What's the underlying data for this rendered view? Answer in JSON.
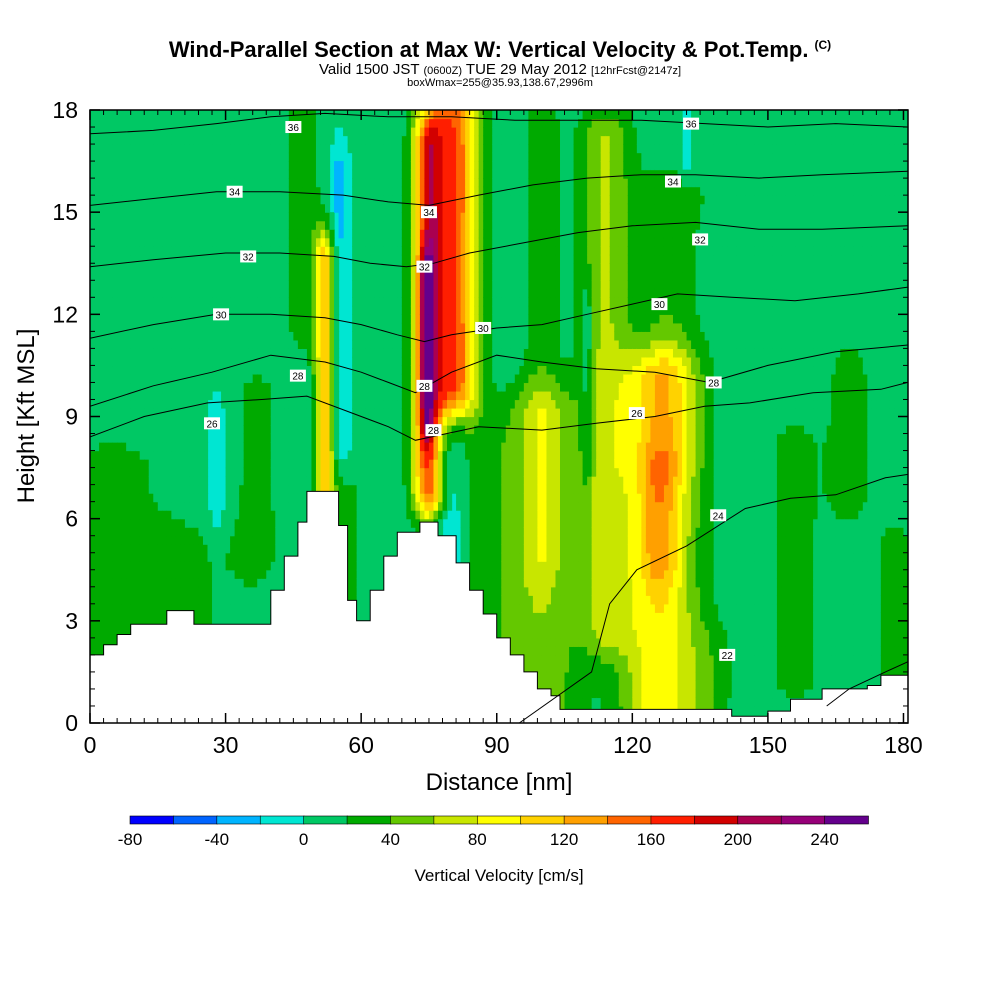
{
  "title": {
    "main": "Wind-Parallel Section at Max W: Vertical Velocity & Pot.Temp.",
    "copyright": "(C)",
    "valid_prefix": "Valid 1500 JST",
    "valid_utc": "(0600Z)",
    "valid_date": "TUE 29 May 2012",
    "forecast": "[12hrFcst@2147z]",
    "box_info": "boxWmax=255@35.93,138.67,2996m"
  },
  "chart_data": {
    "type": "heatmap",
    "xlabel": "Distance [nm]",
    "ylabel": "Height [Kft MSL]",
    "xlim": [
      0,
      181
    ],
    "ylim": [
      0,
      18
    ],
    "x_ticks": [
      0,
      30,
      60,
      90,
      120,
      150,
      180
    ],
    "y_ticks": [
      0,
      3,
      6,
      9,
      12,
      15,
      18
    ],
    "colorbar": {
      "label": "Vertical Velocity [cm/s]",
      "levels": [
        -80,
        -60,
        -40,
        -20,
        0,
        20,
        40,
        60,
        80,
        100,
        120,
        140,
        160,
        180,
        200,
        220,
        240
      ],
      "tick_labels": [
        "-80",
        "-40",
        "0",
        "40",
        "80",
        "120",
        "160",
        "200",
        "240"
      ],
      "colors": [
        "#0000ff",
        "#0064ff",
        "#00b4ff",
        "#00e6d2",
        "#00c864",
        "#00aa00",
        "#64c800",
        "#c8e600",
        "#ffff00",
        "#ffd200",
        "#ffa000",
        "#ff6400",
        "#ff1e00",
        "#d20000",
        "#aa0050",
        "#960078",
        "#64008c"
      ]
    },
    "background_color": "#00e6d2",
    "w_features": [
      {
        "x": 5,
        "x_sigma": 9,
        "z_from": 0,
        "z_to": 7.5,
        "w": 20
      },
      {
        "x": 20,
        "x_sigma": 9,
        "z_from": 0,
        "z_to": 5,
        "w": 18
      },
      {
        "x": 37,
        "x_sigma": 4,
        "z_from": 5,
        "z_to": 9.5,
        "w": 20
      },
      {
        "x": 28,
        "x_sigma": 1.2,
        "z_from": 6.5,
        "z_to": 8.5,
        "w": -30
      },
      {
        "x": 47,
        "x_sigma": 3,
        "z_from": 12,
        "z_to": 18,
        "w": 25
      },
      {
        "x": 52,
        "x_sigma": 1.6,
        "z_from": 7,
        "z_to": 13.5,
        "w": 110
      },
      {
        "x": 55,
        "x_sigma": 1.6,
        "z_from": 8.5,
        "z_to": 16,
        "w": -35
      },
      {
        "x": 57,
        "x_sigma": 2.5,
        "z_from": 3,
        "z_to": 6.5,
        "w": 20
      },
      {
        "x": 75,
        "x_sigma": 2.5,
        "z_from": 7,
        "z_to": 17,
        "w": 155
      },
      {
        "x": 74.5,
        "x_sigma": 1.2,
        "z_from": 9,
        "z_to": 13,
        "w": 80
      },
      {
        "x": 81,
        "x_sigma": 3.5,
        "z_from": 10,
        "z_to": 18,
        "w": 145
      },
      {
        "x": 79,
        "x_sigma": 3,
        "z_from": 3,
        "z_to": 8,
        "w": -40
      },
      {
        "x": 86,
        "x_sigma": 6,
        "z_from": 0,
        "z_to": 8,
        "w": 25
      },
      {
        "x": 100,
        "x_sigma": 6,
        "z_from": 0,
        "z_to": 9,
        "w": 50
      },
      {
        "x": 100,
        "x_sigma": 3,
        "z_from": 5,
        "z_to": 18,
        "w": 25
      },
      {
        "x": 110,
        "x_sigma": 0.9,
        "z_from": 8,
        "z_to": 12,
        "w": -30
      },
      {
        "x": 114,
        "x_sigma": 4,
        "z_from": 3,
        "z_to": 17,
        "w": 55
      },
      {
        "x": 126,
        "x_sigma": 6,
        "z_from": 0,
        "z_to": 10,
        "w": 90
      },
      {
        "x": 126,
        "x_sigma": 3,
        "z_from": 5,
        "z_to": 7,
        "w": 40
      },
      {
        "x": 128,
        "x_sigma": 5,
        "z_from": 8,
        "z_to": 15,
        "w": 30
      },
      {
        "x": 137,
        "x_sigma": 4,
        "z_from": 0,
        "z_to": 2,
        "w": 20
      },
      {
        "x": 156,
        "x_sigma": 5,
        "z_from": 1.5,
        "z_to": 8,
        "w": 20
      },
      {
        "x": 168,
        "x_sigma": 3,
        "z_from": 7,
        "z_to": 10,
        "w": 30
      },
      {
        "x": 178,
        "x_sigma": 3,
        "z_from": 0,
        "z_to": 5,
        "w": 25
      },
      {
        "x": 132,
        "x_sigma": 0.8,
        "z_from": 17,
        "z_to": 18,
        "w": -30
      },
      {
        "x": 142,
        "x_sigma": 15,
        "z_from": 16,
        "z_to": 18,
        "w": 8
      }
    ],
    "terrain": [
      [
        0,
        2
      ],
      [
        3,
        2.3
      ],
      [
        6,
        2.6
      ],
      [
        9,
        2.9
      ],
      [
        17,
        3.3
      ],
      [
        23,
        2.9
      ],
      [
        36,
        2.9
      ],
      [
        40,
        3.9
      ],
      [
        43,
        4.9
      ],
      [
        46,
        5.9
      ],
      [
        48,
        6.8
      ],
      [
        52,
        6.8
      ],
      [
        55,
        5.8
      ],
      [
        57,
        3.6
      ],
      [
        59,
        3.0
      ],
      [
        62,
        3.9
      ],
      [
        65,
        4.9
      ],
      [
        68,
        5.6
      ],
      [
        73,
        5.9
      ],
      [
        77,
        5.5
      ],
      [
        81,
        4.7
      ],
      [
        84,
        3.9
      ],
      [
        87,
        3.2
      ],
      [
        90,
        2.5
      ],
      [
        93,
        2.0
      ],
      [
        96,
        1.5
      ],
      [
        99,
        1.0
      ],
      [
        102,
        0.8
      ],
      [
        104,
        0.4
      ],
      [
        138,
        0.4
      ],
      [
        142,
        0.2
      ],
      [
        150,
        0.35
      ],
      [
        155,
        0.7
      ],
      [
        162,
        1.0
      ],
      [
        172,
        1.1
      ],
      [
        175,
        1.4
      ],
      [
        181,
        1.4
      ]
    ],
    "theta_contours": [
      {
        "level": 22,
        "label": "22",
        "points": [
          [
            163,
            0.5
          ],
          [
            168,
            1.0
          ],
          [
            176,
            1.5
          ],
          [
            181,
            1.8
          ]
        ],
        "label_at": [
          141,
          2.0
        ]
      },
      {
        "level": 24,
        "label": "24",
        "points": [
          [
            95,
            0
          ],
          [
            111,
            1.5
          ],
          [
            115,
            3.5
          ],
          [
            121,
            4.5
          ],
          [
            132,
            5.2
          ],
          [
            145,
            6.3
          ],
          [
            155,
            6.6
          ],
          [
            165,
            6.7
          ],
          [
            176,
            7.2
          ],
          [
            181,
            7.3
          ]
        ],
        "label_at": [
          139,
          6.1
        ]
      },
      {
        "level": 26,
        "label": "26",
        "points": [
          [
            0,
            8.4
          ],
          [
            12,
            9.0
          ],
          [
            26,
            9.4
          ],
          [
            38,
            9.5
          ],
          [
            48,
            9.6
          ],
          [
            60,
            9.0
          ],
          [
            66,
            8.7
          ],
          [
            72,
            8.3
          ],
          [
            86,
            8.7
          ],
          [
            100,
            8.6
          ],
          [
            112,
            8.8
          ],
          [
            125,
            9.0
          ],
          [
            136,
            9.3
          ],
          [
            146,
            9.4
          ],
          [
            160,
            9.7
          ],
          [
            175,
            9.8
          ],
          [
            181,
            10.0
          ]
        ],
        "label_at": [
          121,
          9.1
        ]
      },
      {
        "level": 28,
        "label": "28",
        "points": [
          [
            0,
            9.3
          ],
          [
            14,
            9.9
          ],
          [
            27,
            10.3
          ],
          [
            40,
            10.8
          ],
          [
            52,
            10.6
          ],
          [
            60,
            10.3
          ],
          [
            66,
            10.0
          ],
          [
            72,
            9.7
          ],
          [
            80,
            10.3
          ],
          [
            90,
            10.8
          ],
          [
            100,
            10.6
          ],
          [
            112,
            10.4
          ],
          [
            125,
            10.3
          ],
          [
            137,
            10.0
          ],
          [
            150,
            10.5
          ],
          [
            165,
            10.9
          ],
          [
            181,
            11.1
          ]
        ],
        "label_at": [
          46,
          10.2
        ]
      },
      {
        "level": 30,
        "label": "30",
        "points": [
          [
            0,
            11.3
          ],
          [
            14,
            11.7
          ],
          [
            28,
            12.0
          ],
          [
            40,
            12.0
          ],
          [
            52,
            11.9
          ],
          [
            60,
            11.7
          ],
          [
            68,
            11.4
          ],
          [
            74,
            11.2
          ],
          [
            80,
            11.4
          ],
          [
            90,
            11.6
          ],
          [
            100,
            11.7
          ],
          [
            110,
            12.0
          ],
          [
            120,
            12.3
          ],
          [
            130,
            12.6
          ],
          [
            142,
            12.5
          ],
          [
            156,
            12.4
          ],
          [
            170,
            12.6
          ],
          [
            181,
            12.8
          ]
        ],
        "label_at": [
          29,
          12.0
        ]
      },
      {
        "level": 32,
        "label": "32",
        "points": [
          [
            0,
            13.4
          ],
          [
            14,
            13.6
          ],
          [
            30,
            13.8
          ],
          [
            42,
            13.8
          ],
          [
            54,
            13.7
          ],
          [
            62,
            13.5
          ],
          [
            70,
            13.4
          ],
          [
            76,
            13.5
          ],
          [
            84,
            13.8
          ],
          [
            96,
            14.1
          ],
          [
            108,
            14.4
          ],
          [
            120,
            14.6
          ],
          [
            134,
            14.7
          ],
          [
            148,
            14.5
          ],
          [
            162,
            14.5
          ],
          [
            181,
            14.6
          ]
        ],
        "label_at": [
          35,
          13.7
        ]
      },
      {
        "level": 34,
        "label": "34",
        "points": [
          [
            0,
            15.2
          ],
          [
            14,
            15.4
          ],
          [
            28,
            15.6
          ],
          [
            42,
            15.6
          ],
          [
            56,
            15.5
          ],
          [
            66,
            15.3
          ],
          [
            75,
            15.2
          ],
          [
            86,
            15.5
          ],
          [
            98,
            15.8
          ],
          [
            110,
            16.0
          ],
          [
            122,
            16.1
          ],
          [
            134,
            16.1
          ],
          [
            148,
            16.0
          ],
          [
            162,
            16.1
          ],
          [
            181,
            16.2
          ]
        ],
        "label_at": [
          32,
          15.6
        ]
      },
      {
        "level": 36,
        "label": "36",
        "points": [
          [
            0,
            17.3
          ],
          [
            14,
            17.4
          ],
          [
            28,
            17.6
          ],
          [
            40,
            17.8
          ],
          [
            52,
            17.9
          ],
          [
            66,
            17.8
          ],
          [
            80,
            17.8
          ],
          [
            94,
            17.7
          ],
          [
            108,
            17.7
          ],
          [
            122,
            17.7
          ],
          [
            136,
            17.6
          ],
          [
            150,
            17.5
          ],
          [
            165,
            17.6
          ],
          [
            181,
            17.5
          ]
        ],
        "label_at": [
          45,
          17.5
        ]
      }
    ],
    "extra_labels": [
      {
        "label": "26",
        "at": [
          27,
          8.8
        ]
      },
      {
        "label": "28",
        "at": [
          74,
          9.9
        ]
      },
      {
        "label": "28",
        "at": [
          76,
          8.6
        ]
      },
      {
        "label": "30",
        "at": [
          87,
          11.6
        ]
      },
      {
        "label": "32",
        "at": [
          74,
          13.4
        ]
      },
      {
        "label": "34",
        "at": [
          75,
          15.0
        ]
      },
      {
        "label": "36",
        "at": [
          133,
          17.6
        ]
      },
      {
        "label": "34",
        "at": [
          129,
          15.9
        ]
      },
      {
        "label": "32",
        "at": [
          135,
          14.2
        ]
      },
      {
        "label": "30",
        "at": [
          126,
          12.3
        ]
      },
      {
        "label": "28",
        "at": [
          138,
          10.0
        ]
      }
    ]
  }
}
